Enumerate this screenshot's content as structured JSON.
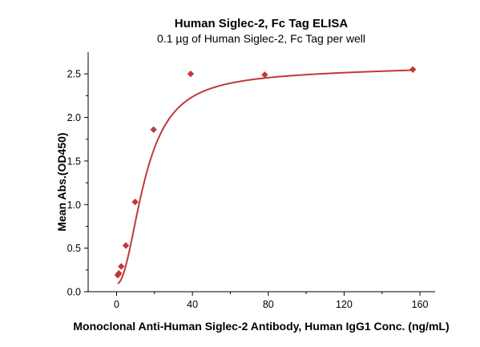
{
  "chart_data": {
    "type": "scatter",
    "title": "Human Siglec-2, Fc Tag ELISA",
    "subtitle": "0.1 µg of Human Siglec-2, Fc Tag per well",
    "xlabel": "Monoclonal Anti-Human Siglec-2 Antibody, Human IgG1 Conc. (ng/mL)",
    "ylabel": "Mean Abs.(OD450)",
    "xlim": [
      -15,
      168
    ],
    "ylim": [
      0,
      2.75
    ],
    "x_ticks": [
      0,
      40,
      80,
      120,
      160
    ],
    "x_tick_labels": [
      "0",
      "40",
      "80",
      "120",
      "160"
    ],
    "y_ticks": [
      0,
      0.5,
      1.0,
      1.5,
      2.0,
      2.5
    ],
    "y_tick_labels": [
      "0.0",
      "0.5",
      "1.0",
      "1.5",
      "2.0",
      "2.5"
    ],
    "grid": false,
    "marker_color": "#c0393b",
    "line_color": "#c0393b",
    "series": [
      {
        "marker": "diamond",
        "x": [
          0.61,
          1.22,
          2.44,
          4.88,
          9.77,
          19.53,
          39.06,
          78.13,
          156.25
        ],
        "y": [
          0.19,
          0.21,
          0.29,
          0.53,
          1.03,
          1.86,
          2.5,
          2.49,
          2.55
        ]
      }
    ],
    "fit_curve": {
      "type": "4PL",
      "bottom": 0.16,
      "top": 2.56,
      "ec50": 15.0,
      "hill": 2.1,
      "slope_plateau": 0.00045
    }
  }
}
